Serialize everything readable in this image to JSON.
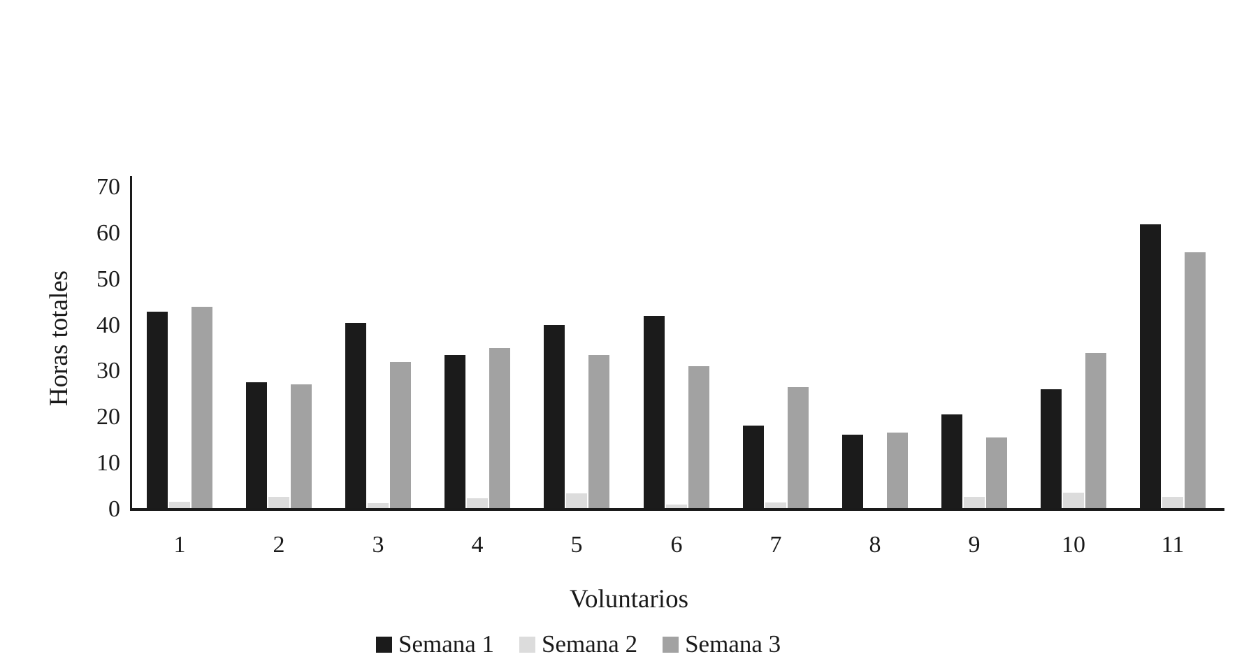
{
  "chart_data": {
    "type": "bar",
    "title": "",
    "xlabel": "Voluntarios",
    "ylabel": "Horas totales",
    "categories": [
      "1",
      "2",
      "3",
      "4",
      "5",
      "6",
      "7",
      "8",
      "9",
      "10",
      "11"
    ],
    "series": [
      {
        "name": "Semana 1",
        "color": "#1b1b1b",
        "values": [
          43,
          27.5,
          40.5,
          33.5,
          40,
          42,
          18,
          16,
          20.5,
          26,
          62
        ]
      },
      {
        "name": "Semana 2",
        "color": "#dcdcdc",
        "values": [
          1.3,
          2.4,
          1.1,
          2.1,
          3.2,
          0.7,
          1.2,
          0,
          2.5,
          3.4,
          2.5
        ]
      },
      {
        "name": "Semana 3",
        "color": "#a2a2a2",
        "values": [
          44,
          27,
          32,
          35,
          33.5,
          31,
          26.5,
          16.5,
          15.5,
          34,
          56
        ]
      }
    ],
    "y_ticks": [
      0,
      10,
      20,
      30,
      40,
      50,
      60,
      70
    ],
    "ylim": [
      0,
      70
    ],
    "grid": false,
    "legend_position": "bottom",
    "background_color": "#ffffff",
    "text_color": "#1a1a1a"
  }
}
